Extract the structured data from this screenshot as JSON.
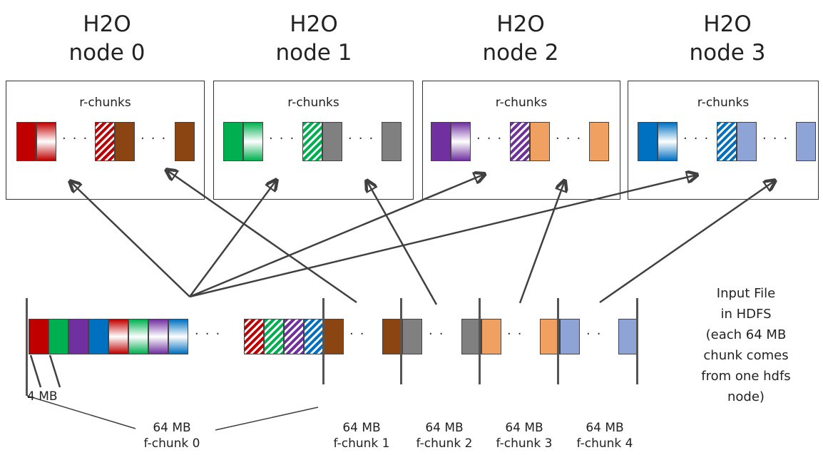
{
  "nodes": [
    {
      "t1": "H2O",
      "t2": "node 0",
      "box_label": "r-chunks"
    },
    {
      "t1": "H2O",
      "t2": "node 1",
      "box_label": "r-chunks"
    },
    {
      "t1": "H2O",
      "t2": "node 2",
      "box_label": "r-chunks"
    },
    {
      "t1": "H2O",
      "t2": "node 3",
      "box_label": "r-chunks"
    }
  ],
  "labels": {
    "four_mb": "4 MB"
  },
  "f_chunks": [
    {
      "size": "64 MB",
      "name": "f-chunk 0"
    },
    {
      "size": "64 MB",
      "name": "f-chunk 1"
    },
    {
      "size": "64 MB",
      "name": "f-chunk 2"
    },
    {
      "size": "64 MB",
      "name": "f-chunk 3"
    },
    {
      "size": "64 MB",
      "name": "f-chunk 4"
    }
  ],
  "input_note": [
    "Input File",
    "in HDFS",
    "(each 64 MB",
    "chunk comes",
    "from one hdfs",
    "node)"
  ],
  "colors": {
    "red": "#c00000",
    "green": "#00b050",
    "purple": "#7030a0",
    "blue": "#0070c0",
    "brown": "#8b4513",
    "gray": "#808080",
    "orange": "#f0a060",
    "light_blue": "#8ea4d6"
  }
}
